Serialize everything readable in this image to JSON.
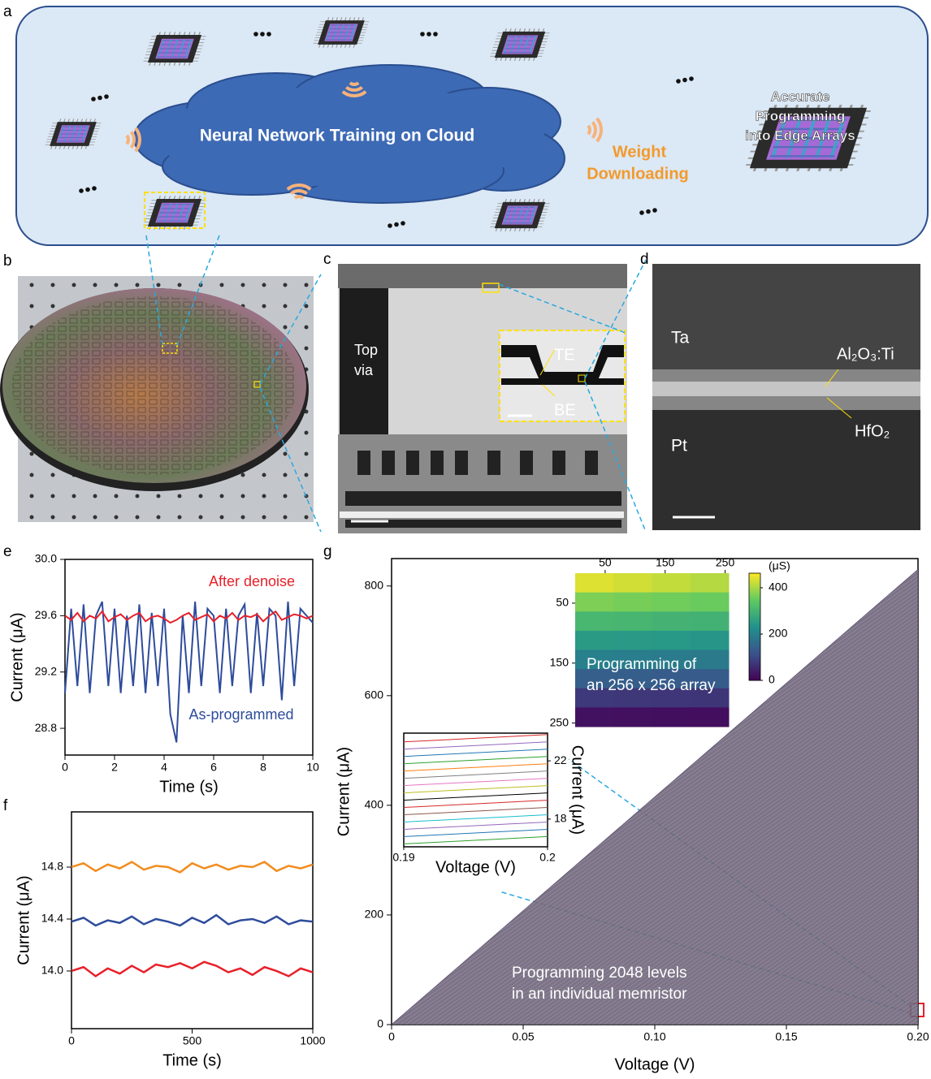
{
  "panel_labels": [
    "a",
    "b",
    "c",
    "d",
    "e",
    "f",
    "g"
  ],
  "panel_a": {
    "cloud_text": "Neural Network Training on Cloud",
    "download_text": [
      "Weight",
      "Downloading"
    ],
    "edge_text": [
      "Accurate",
      "Programming",
      "into Edge Arrays"
    ]
  },
  "panel_c": {
    "labels": [
      "Top",
      "via",
      "TE",
      "BE"
    ]
  },
  "panel_d": {
    "labels": [
      "Ta",
      "Al₂O₃:Ti",
      "HfO₂",
      "Pt"
    ]
  },
  "chart_data": [
    {
      "type": "line",
      "xlabel": "Time (s)",
      "ylabel": "Current (μA)",
      "xlim": [
        0,
        10
      ],
      "ylim": [
        28.61,
        30
      ],
      "xticks": [
        0,
        2,
        4,
        6,
        8,
        10
      ],
      "yticks": [
        28.8,
        29.2,
        29.6,
        {
          "value": 30,
          "label": "30.0"
        }
      ],
      "x": [
        0,
        0.25,
        0.5,
        0.75,
        1,
        1.25,
        1.5,
        1.75,
        2,
        2.25,
        2.5,
        2.75,
        3,
        3.25,
        3.5,
        3.75,
        4,
        4.25,
        4.5,
        4.75,
        5,
        5.25,
        5.5,
        5.75,
        6,
        6.25,
        6.5,
        6.75,
        7,
        7.25,
        7.5,
        7.75,
        8,
        8.25,
        8.5,
        8.75,
        9,
        9.25,
        9.5,
        9.75,
        10
      ],
      "series": [
        {
          "name": "As-programmed",
          "color": "#2e4c9c",
          "values": [
            29.05,
            29.65,
            29.1,
            29.68,
            29.05,
            29.6,
            29.7,
            29.1,
            29.65,
            29.05,
            29.6,
            29.1,
            29.68,
            29.05,
            29.62,
            29.1,
            29.65,
            28.9,
            28.7,
            29.6,
            29.05,
            29.7,
            29.1,
            29.65,
            29.6,
            29.05,
            29.65,
            29.1,
            29.6,
            29.68,
            29.05,
            29.62,
            29.1,
            29.65,
            29.6,
            29.0,
            29.7,
            29.1,
            29.65,
            29.6,
            29.55
          ]
        },
        {
          "name": "After denoise",
          "color": "#e8202a",
          "values": [
            29.6,
            29.57,
            29.62,
            29.56,
            29.6,
            29.58,
            29.63,
            29.56,
            29.59,
            29.61,
            29.57,
            29.6,
            29.62,
            29.56,
            29.59,
            29.6,
            29.58,
            29.55,
            29.57,
            29.6,
            29.62,
            29.57,
            29.59,
            29.61,
            29.56,
            29.6,
            29.58,
            29.62,
            29.57,
            29.6,
            29.59,
            29.61,
            29.56,
            29.6,
            29.63,
            29.57,
            29.59,
            29.61,
            29.6,
            29.58,
            29.6
          ]
        }
      ]
    },
    {
      "type": "line",
      "xlabel": "Time (s)",
      "ylabel": "Current (μA)",
      "xlim": [
        0,
        1000
      ],
      "ylim": [
        13.556,
        15.225
      ],
      "xticks": [
        0,
        500,
        1000
      ],
      "yticks": [
        {
          "value": 14,
          "label": "14.0"
        },
        14.4,
        14.8
      ],
      "x": [
        0,
        50,
        100,
        150,
        200,
        250,
        300,
        350,
        400,
        450,
        500,
        550,
        600,
        650,
        700,
        750,
        800,
        850,
        900,
        950,
        1000
      ],
      "series": [
        {
          "color": "#f28c1e",
          "values": [
            14.8,
            14.83,
            14.77,
            14.82,
            14.79,
            14.84,
            14.78,
            14.81,
            14.8,
            14.76,
            14.83,
            14.79,
            14.82,
            14.78,
            14.81,
            14.8,
            14.84,
            14.77,
            14.81,
            14.79,
            14.82
          ]
        },
        {
          "color": "#2e4c9c",
          "values": [
            14.38,
            14.41,
            14.35,
            14.39,
            14.37,
            14.42,
            14.36,
            14.4,
            14.38,
            14.35,
            14.41,
            14.37,
            14.43,
            14.36,
            14.39,
            14.4,
            14.37,
            14.42,
            14.36,
            14.39,
            14.38
          ]
        },
        {
          "color": "#e8202a",
          "values": [
            14.0,
            14.03,
            13.96,
            14.02,
            13.98,
            14.04,
            13.99,
            14.05,
            14.03,
            14.06,
            14.02,
            14.07,
            14.04,
            13.99,
            14.02,
            13.97,
            14.03,
            14.0,
            13.96,
            14.02,
            13.99
          ]
        }
      ]
    },
    {
      "type": "area",
      "xlabel": "Voltage (V)",
      "ylabel": "Current (μA)",
      "xlim": [
        0,
        0.2
      ],
      "ylim": [
        0,
        850
      ],
      "xticks": [
        0,
        0.05,
        {
          "value": 0.1,
          "label": "0.10"
        },
        0.15,
        {
          "value": 0.2,
          "label": "0.20"
        }
      ],
      "yticks": [
        0,
        200,
        400,
        600,
        800
      ],
      "x": [
        0,
        0.2
      ],
      "series": [
        {
          "color": "#5a4a6e",
          "values": [
            0,
            830
          ]
        }
      ],
      "annotation": [
        "Programming 2048 levels",
        "in an individual memristor"
      ]
    },
    {
      "type": "heatmap",
      "xlim": [
        0,
        256
      ],
      "ylim": [
        0,
        256
      ],
      "xticks": [
        50,
        150,
        250
      ],
      "yticks": [
        50,
        150,
        250
      ],
      "colormap": "viridis",
      "clim": [
        0,
        463
      ],
      "cticks": [
        0,
        200,
        400
      ],
      "colorbar_label": "(μS)",
      "annotation": [
        "Programming of",
        "an 256 x 256 array"
      ],
      "values": [
        [
          440,
          430,
          420,
          410
        ],
        [
          370,
          365,
          360,
          355
        ],
        [
          310,
          305,
          300,
          298
        ],
        [
          250,
          248,
          245,
          242
        ],
        [
          200,
          195,
          192,
          190
        ],
        [
          140,
          138,
          135,
          132
        ],
        [
          80,
          78,
          76,
          74
        ],
        [
          25,
          22,
          20,
          18
        ]
      ]
    },
    {
      "type": "line",
      "xlabel": "Voltage (V)",
      "ylabel": "Current (μA)",
      "xlim": [
        0.19,
        0.2
      ],
      "ylim": [
        16.1,
        23.9
      ],
      "xticks": [
        0.19,
        0.2
      ],
      "yticks": [
        18,
        22
      ],
      "x": [
        0.19,
        0.2
      ],
      "series": [
        {
          "color": "#2ca02c",
          "values": [
            16.3,
            16.8
          ]
        },
        {
          "color": "#1f77b4",
          "values": [
            16.8,
            17.3
          ]
        },
        {
          "color": "#9467bd",
          "values": [
            17.3,
            17.8
          ]
        },
        {
          "color": "#17becf",
          "values": [
            17.8,
            18.3
          ]
        },
        {
          "color": "#8c564b",
          "values": [
            18.3,
            18.8
          ]
        },
        {
          "color": "#d62728",
          "values": [
            18.8,
            19.3
          ]
        },
        {
          "color": "#000000",
          "values": [
            19.3,
            19.8
          ]
        },
        {
          "color": "#bcbd22",
          "values": [
            19.8,
            20.3
          ]
        },
        {
          "color": "#e377c2",
          "values": [
            20.3,
            20.8
          ]
        },
        {
          "color": "#7f7f7f",
          "values": [
            20.8,
            21.3
          ]
        },
        {
          "color": "#ff7f0e",
          "values": [
            21.3,
            21.8
          ]
        },
        {
          "color": "#2ca02c",
          "values": [
            21.8,
            22.3
          ]
        },
        {
          "color": "#1f77b4",
          "values": [
            22.3,
            22.8
          ]
        },
        {
          "color": "#9467bd",
          "values": [
            22.8,
            23.3
          ]
        },
        {
          "color": "#d62728",
          "values": [
            23.3,
            23.8
          ]
        }
      ]
    }
  ]
}
